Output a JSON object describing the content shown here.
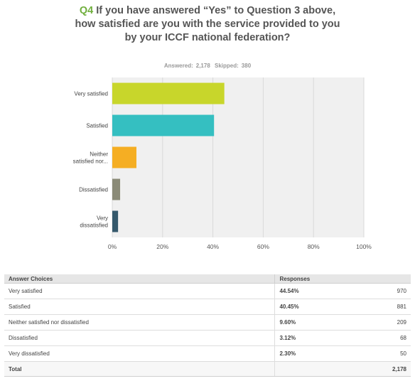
{
  "question": {
    "number": "Q4",
    "text": "If you have answered “Yes” to Question 3 above, how satisfied are you with the service provided to you by your ICCF national federation?"
  },
  "summary": {
    "answered_label": "Answered:",
    "answered": "2,178",
    "skipped_label": "Skipped:",
    "skipped": "380"
  },
  "chart_data": {
    "type": "bar",
    "orientation": "horizontal",
    "categories": [
      "Very satisfied",
      "Satisfied",
      "Neither satisfied nor dissatisfied",
      "Dissatisfied",
      "Very dissatisfied"
    ],
    "category_labels": [
      [
        "Very satisfied"
      ],
      [
        "Satisfied"
      ],
      [
        "Neither",
        "satisfied nor..."
      ],
      [
        "Dissatisfied"
      ],
      [
        "Very",
        "dissatisfied"
      ]
    ],
    "values": [
      44.54,
      40.45,
      9.6,
      3.12,
      2.3
    ],
    "colors": [
      "#c8d62b",
      "#35bfc1",
      "#f5ae23",
      "#8b8b78",
      "#35596c"
    ],
    "xlim": [
      0,
      100
    ],
    "xticks": [
      "0%",
      "20%",
      "40%",
      "60%",
      "80%",
      "100%"
    ],
    "xtick_values": [
      0,
      20,
      40,
      60,
      80,
      100
    ],
    "grid": true
  },
  "table": {
    "headers": {
      "choices": "Answer Choices",
      "responses": "Responses"
    },
    "rows": [
      {
        "choice": "Very satisfied",
        "pct": "44.54%",
        "count": "970"
      },
      {
        "choice": "Satisfied",
        "pct": "40.45%",
        "count": "881"
      },
      {
        "choice": "Neither satisfied nor dissatisfied",
        "pct": "9.60%",
        "count": "209"
      },
      {
        "choice": "Dissatisfied",
        "pct": "3.12%",
        "count": "68"
      },
      {
        "choice": "Very dissatisfied",
        "pct": "2.30%",
        "count": "50"
      }
    ],
    "total_label": "Total",
    "total": "2,178"
  }
}
